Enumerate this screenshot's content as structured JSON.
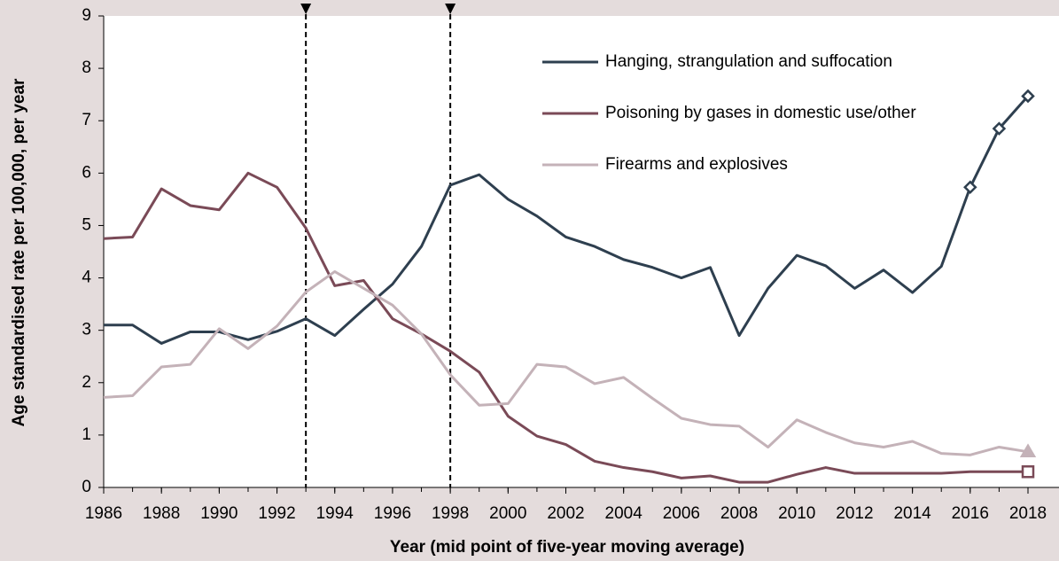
{
  "chart_data": {
    "type": "line",
    "xlabel": "Year (mid point of five-year moving average)",
    "ylabel": "Age standardised rate per 100,000, per year",
    "x": [
      1986,
      1987,
      1988,
      1989,
      1990,
      1991,
      1992,
      1993,
      1994,
      1995,
      1996,
      1997,
      1998,
      1999,
      2000,
      2001,
      2002,
      2003,
      2004,
      2005,
      2006,
      2007,
      2008,
      2009,
      2010,
      2011,
      2012,
      2013,
      2014,
      2015,
      2016,
      2017,
      2018
    ],
    "series": [
      {
        "name": "Hanging, strangulation and suffocation",
        "color": "#2e3f4f",
        "marker": "diamond",
        "marker_x": [
          2016,
          2017,
          2018
        ],
        "values": [
          3.1,
          3.1,
          2.75,
          2.97,
          2.97,
          2.82,
          2.98,
          3.22,
          2.9,
          3.4,
          3.88,
          4.6,
          5.77,
          5.97,
          5.5,
          5.18,
          4.78,
          4.6,
          4.35,
          4.2,
          4.0,
          4.2,
          2.9,
          3.8,
          4.43,
          4.23,
          3.8,
          4.15,
          3.72,
          4.22,
          5.73,
          6.85,
          7.47
        ]
      },
      {
        "name": "Poisoning by gases in domestic use/other",
        "color": "#7a4a57",
        "marker": "square",
        "marker_x": [
          2018
        ],
        "values": [
          4.75,
          4.78,
          5.7,
          5.38,
          5.3,
          6.0,
          5.73,
          4.95,
          3.85,
          3.95,
          3.22,
          2.93,
          2.6,
          2.2,
          1.36,
          0.98,
          0.82,
          0.5,
          0.38,
          0.3,
          0.18,
          0.22,
          0.1,
          0.1,
          0.25,
          0.38,
          0.27,
          0.27,
          0.27,
          0.27,
          0.3,
          0.3,
          0.3
        ]
      },
      {
        "name": "Firearms and explosives",
        "color": "#c4b2b8",
        "marker": "triangle",
        "marker_x": [
          2018
        ],
        "values": [
          1.72,
          1.75,
          2.3,
          2.35,
          3.03,
          2.65,
          3.08,
          3.73,
          4.12,
          3.8,
          3.48,
          2.93,
          2.15,
          1.57,
          1.6,
          2.35,
          2.3,
          1.98,
          2.1,
          1.7,
          1.32,
          1.2,
          1.17,
          0.77,
          1.29,
          1.05,
          0.85,
          0.77,
          0.88,
          0.65,
          0.62,
          0.77,
          0.68
        ]
      }
    ],
    "xlim": [
      1986,
      2018
    ],
    "xticks": [
      1986,
      1988,
      1990,
      1992,
      1994,
      1996,
      1998,
      2000,
      2002,
      2004,
      2006,
      2008,
      2010,
      2012,
      2014,
      2016,
      2018
    ],
    "ylim": [
      0,
      9
    ],
    "yticks": [
      0,
      1,
      2,
      3,
      4,
      5,
      6,
      7,
      8,
      9
    ],
    "grid": false,
    "legend": "upper right",
    "reference_lines": [
      1993,
      1998
    ]
  }
}
